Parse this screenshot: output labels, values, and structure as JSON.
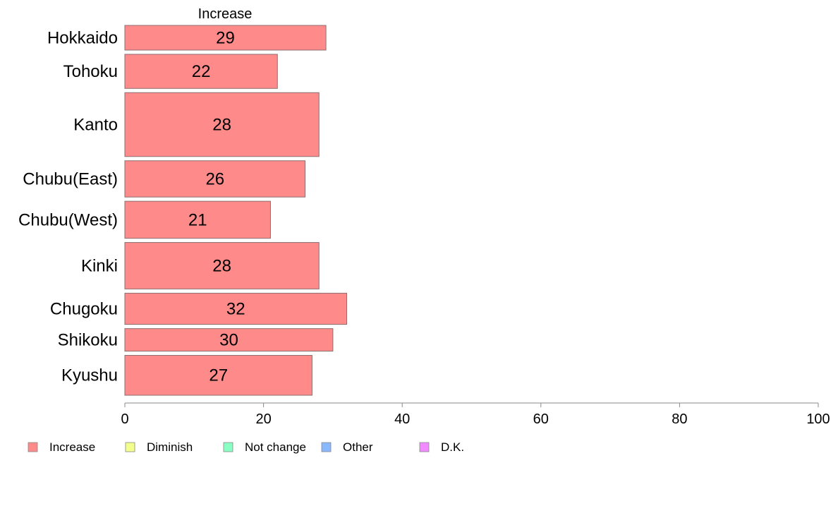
{
  "chart_data": {
    "type": "bar",
    "orientation": "horizontal",
    "series_header": "Increase",
    "categories": [
      "Hokkaido",
      "Tohoku",
      "Kanto",
      "Chubu(East)",
      "Chubu(West)",
      "Kinki",
      "Chugoku",
      "Shikoku",
      "Kyushu"
    ],
    "row_weights": [
      34,
      47,
      88,
      50,
      51,
      64,
      43,
      31,
      55
    ],
    "series": [
      {
        "name": "Increase",
        "color": "#ff8a8a",
        "values": [
          29,
          22,
          28,
          26,
          21,
          28,
          32,
          30,
          27
        ]
      }
    ],
    "data_labels": [
      "29",
      "22",
      "28",
      "26",
      "21",
      "28",
      "32",
      "30",
      "27"
    ],
    "xlim": [
      0,
      100
    ],
    "xticks": [
      0,
      20,
      40,
      60,
      80,
      100
    ],
    "xtick_labels": [
      "0",
      "20",
      "40",
      "60",
      "80",
      "100"
    ],
    "grid": false,
    "legend": {
      "position": "bottom-left",
      "items": [
        {
          "label": "Increase",
          "color": "#ff8a8a"
        },
        {
          "label": "Diminish",
          "color": "#f2ff8a"
        },
        {
          "label": "Not change",
          "color": "#8affc4"
        },
        {
          "label": "Other",
          "color": "#8ab8ff"
        },
        {
          "label": "D.K.",
          "color": "#f28aff"
        }
      ]
    }
  }
}
